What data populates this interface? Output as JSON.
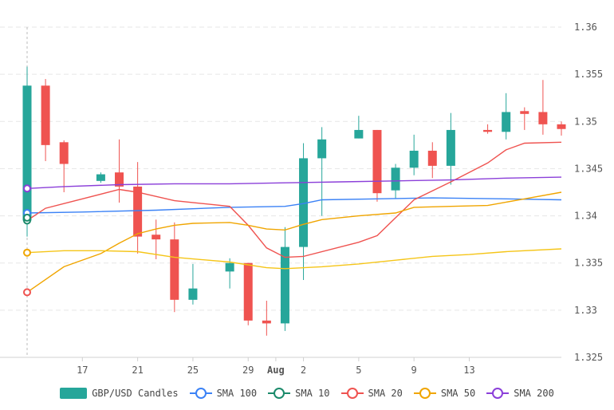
{
  "chart_data": {
    "type": "candlestick",
    "x_ticks": [
      "17",
      "21",
      "25",
      "29",
      "Aug",
      "2",
      "5",
      "9",
      "13"
    ],
    "y_ticks": [
      "1.325",
      "1.33",
      "1.335",
      "1.34",
      "1.345",
      "1.35",
      "1.355",
      "1.36"
    ],
    "ylim": [
      1.325,
      1.36
    ],
    "grid": true,
    "legend_position": "bottom",
    "candles": {
      "name": "GBP/USD Candles",
      "colors": {
        "up": "#26a69a",
        "down": "#ef5350"
      },
      "data": [
        {
          "x": 14.0,
          "o": 1.3395,
          "h": 1.3558,
          "l": 1.3378,
          "c": 1.3538
        },
        {
          "x": 15.0,
          "o": 1.3538,
          "h": 1.3545,
          "l": 1.3458,
          "c": 1.3475
        },
        {
          "x": 16.0,
          "o": 1.3478,
          "h": 1.348,
          "l": 1.3425,
          "c": 1.3455
        },
        {
          "x": 18.0,
          "o": 1.3437,
          "h": 1.3446,
          "l": 1.3435,
          "c": 1.3444
        },
        {
          "x": 19.0,
          "o": 1.3446,
          "h": 1.3481,
          "l": 1.3414,
          "c": 1.3431
        },
        {
          "x": 20.0,
          "o": 1.3431,
          "h": 1.3457,
          "l": 1.336,
          "c": 1.3378
        },
        {
          "x": 21.0,
          "o": 1.338,
          "h": 1.3396,
          "l": 1.3354,
          "c": 1.3375
        },
        {
          "x": 22.0,
          "o": 1.3375,
          "h": 1.3393,
          "l": 1.3298,
          "c": 1.3311
        },
        {
          "x": 23.0,
          "o": 1.3311,
          "h": 1.3349,
          "l": 1.3306,
          "c": 1.3323
        },
        {
          "x": 25.0,
          "o": 1.3341,
          "h": 1.3355,
          "l": 1.3323,
          "c": 1.335
        },
        {
          "x": 26.0,
          "o": 1.335,
          "h": 1.335,
          "l": 1.3284,
          "c": 1.3289
        },
        {
          "x": 27.0,
          "o": 1.3289,
          "h": 1.331,
          "l": 1.3273,
          "c": 1.3286
        },
        {
          "x": 28.0,
          "o": 1.3286,
          "h": 1.3388,
          "l": 1.3278,
          "c": 1.3367
        },
        {
          "x": 29.0,
          "o": 1.3367,
          "h": 1.3477,
          "l": 1.3332,
          "c": 1.3461
        },
        {
          "x": 30.0,
          "o": 1.3461,
          "h": 1.3494,
          "l": 1.34,
          "c": 1.3481
        },
        {
          "x": 32.0,
          "o": 1.3482,
          "h": 1.3506,
          "l": 1.3482,
          "c": 1.3491
        },
        {
          "x": 33.0,
          "o": 1.3491,
          "h": 1.3491,
          "l": 1.3415,
          "c": 1.3424
        },
        {
          "x": 34.0,
          "o": 1.3427,
          "h": 1.3455,
          "l": 1.3418,
          "c": 1.3451
        },
        {
          "x": 35.0,
          "o": 1.3451,
          "h": 1.3486,
          "l": 1.3443,
          "c": 1.3469
        },
        {
          "x": 36.0,
          "o": 1.3469,
          "h": 1.3478,
          "l": 1.344,
          "c": 1.3453
        },
        {
          "x": 37.0,
          "o": 1.3453,
          "h": 1.3509,
          "l": 1.3433,
          "c": 1.3491
        },
        {
          "x": 39.0,
          "o": 1.3491,
          "h": 1.3497,
          "l": 1.3487,
          "c": 1.3489
        },
        {
          "x": 40.0,
          "o": 1.3489,
          "h": 1.353,
          "l": 1.3481,
          "c": 1.351
        },
        {
          "x": 41.0,
          "o": 1.3511,
          "h": 1.3515,
          "l": 1.3491,
          "c": 1.3508
        },
        {
          "x": 42.0,
          "o": 1.351,
          "h": 1.3544,
          "l": 1.3486,
          "c": 1.3497
        },
        {
          "x": 43.0,
          "o": 1.3497,
          "h": 1.35,
          "l": 1.3485,
          "c": 1.3492
        }
      ]
    },
    "series": [
      {
        "name": "SMA 100",
        "color": "#3b82f6",
        "x": [
          14,
          17,
          21,
          25,
          28,
          29,
          30,
          33,
          36,
          40,
          43
        ],
        "y": [
          1.3403,
          1.3404,
          1.3406,
          1.3409,
          1.341,
          1.3413,
          1.3417,
          1.3418,
          1.3419,
          1.3418,
          1.3417
        ]
      },
      {
        "name": "SMA 10",
        "color": "#ef5350",
        "x": [
          14,
          15,
          17,
          19,
          20,
          22,
          25,
          26,
          27,
          28,
          29,
          32,
          33,
          35,
          37,
          39,
          40,
          41,
          43
        ],
        "y": [
          1.3395,
          1.3408,
          1.3418,
          1.3428,
          1.3425,
          1.3416,
          1.341,
          1.339,
          1.3366,
          1.3356,
          1.3357,
          1.3372,
          1.3379,
          1.3417,
          1.3436,
          1.3456,
          1.347,
          1.3477,
          1.3478
        ]
      },
      {
        "name": "SMA 20",
        "color": "#f0a500",
        "x": [
          14,
          16,
          18,
          19,
          20,
          21,
          22,
          23,
          25,
          26,
          27,
          28,
          29,
          30,
          32,
          34,
          35,
          37,
          39,
          41,
          43
        ],
        "y": [
          1.3319,
          1.3346,
          1.336,
          1.3371,
          1.3381,
          1.3386,
          1.339,
          1.3392,
          1.3393,
          1.339,
          1.3386,
          1.3385,
          1.3391,
          1.3396,
          1.34,
          1.3403,
          1.3409,
          1.341,
          1.3411,
          1.3418,
          1.3425
        ]
      },
      {
        "name": "SMA 50",
        "color": "#f5c518",
        "x": [
          14,
          16,
          18,
          20,
          22,
          25,
          27,
          28,
          30,
          32,
          34,
          36,
          38,
          40,
          43
        ],
        "y": [
          1.3361,
          1.3363,
          1.3363,
          1.3362,
          1.3356,
          1.3351,
          1.3345,
          1.3344,
          1.3346,
          1.3349,
          1.3353,
          1.3357,
          1.3359,
          1.3362,
          1.3365
        ]
      },
      {
        "name": "SMA 200",
        "color": "#8b3fd9",
        "x": [
          14,
          16,
          19,
          22,
          25,
          28,
          31,
          34,
          37,
          40,
          43
        ],
        "y": [
          1.3429,
          1.3431,
          1.3433,
          1.3434,
          1.3434,
          1.3435,
          1.3436,
          1.3437,
          1.3438,
          1.344,
          1.3441
        ]
      }
    ],
    "x_tick_positions": [
      17,
      20,
      23,
      26,
      27.5,
      29,
      32,
      35,
      38
    ],
    "origin_markers": [
      "SMA 200",
      "SMA 100",
      "SMA 10",
      "SMA 50",
      "SMA 20"
    ]
  },
  "legend": {
    "candles_label": "GBP/USD Candles",
    "sma100_label": "SMA 100",
    "sma10_label": "SMA 10",
    "sma20_label": "SMA 20",
    "sma50_label": "SMA 50",
    "sma200_label": "SMA 200"
  }
}
